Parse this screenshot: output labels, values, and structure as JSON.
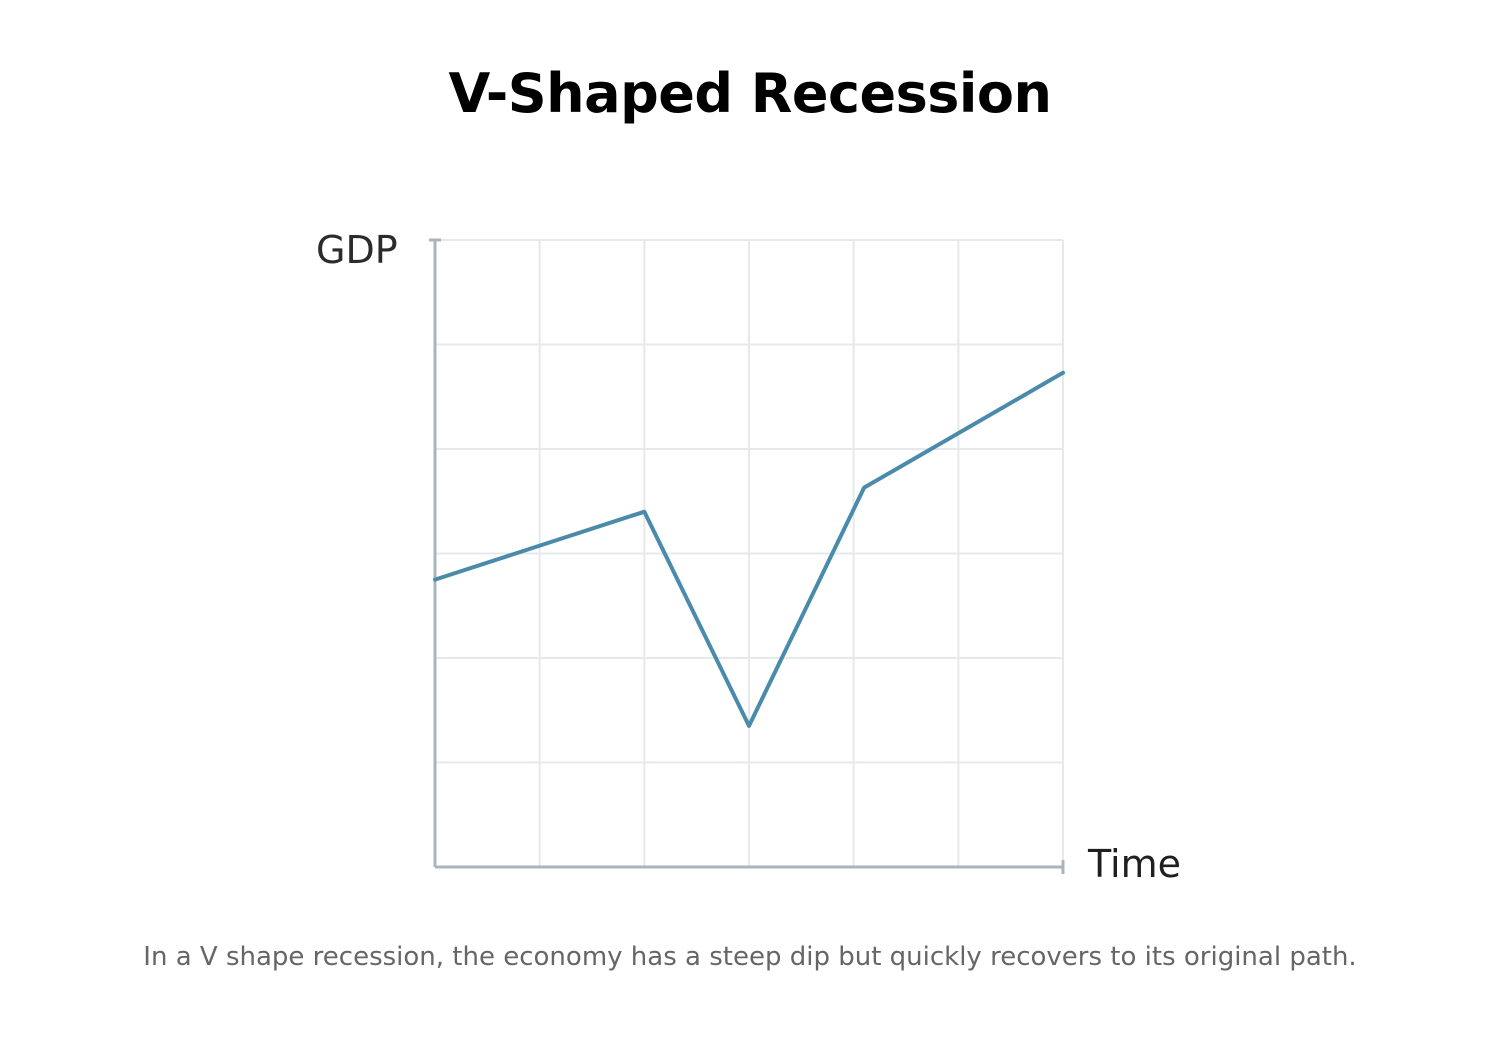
{
  "chart_data": {
    "type": "line",
    "title": "V-Shaped Recession",
    "xlabel": "Time",
    "ylabel": "GDP",
    "caption": "In a V shape recession, the economy has a steep dip but quickly recovers to its original path.",
    "xlim": [
      0,
      6
    ],
    "ylim": [
      0,
      6
    ],
    "grid": true,
    "series": [
      {
        "x": [
          0,
          2,
          3,
          4.1,
          6
        ],
        "values": [
          2.75,
          3.4,
          1.35,
          3.63,
          4.73
        ]
      }
    ],
    "colors": {
      "line": "#4a8aab",
      "axis": "#a9b4bc",
      "grid": "#e6e9eb"
    }
  }
}
